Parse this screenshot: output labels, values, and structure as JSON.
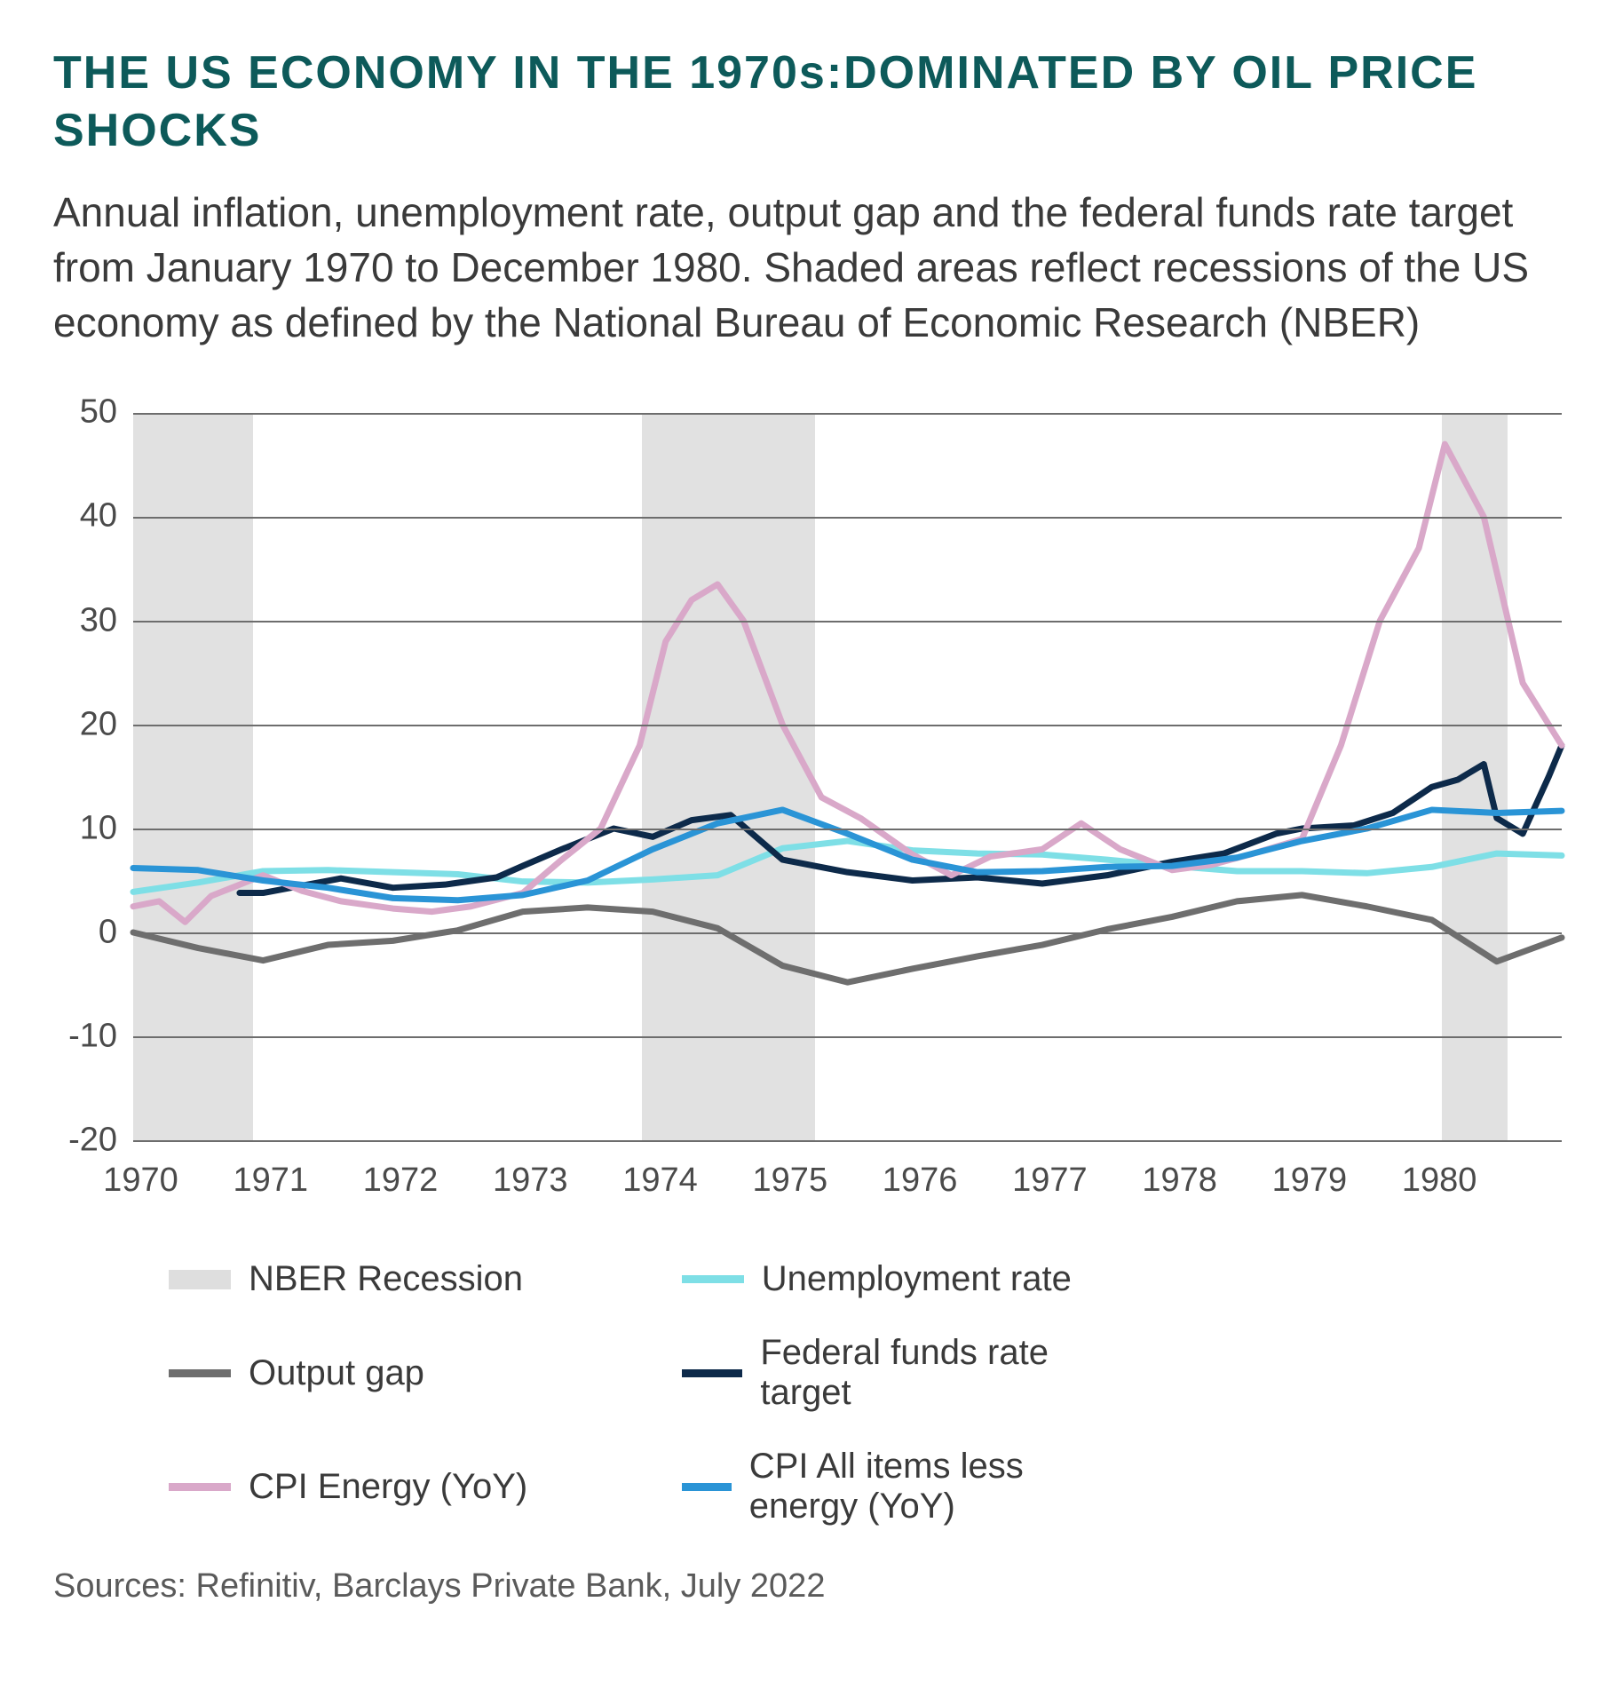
{
  "title": "THE US ECONOMY IN THE 1970s:DOMINATED BY OIL PRICE SHOCKS",
  "subtitle": "Annual inflation, unemployment rate, output gap and the federal funds rate target from January 1970 to December 1980. Shaded areas reflect recessions of the US economy as defined by the National Bureau of Economic Research (NBER)",
  "sources": "Sources: Refinitiv, Barclays Private Bank, July 2022",
  "chart": {
    "type": "line",
    "background_color": "#ffffff",
    "grid_color": "#6d6d6d",
    "ylim": [
      -20,
      50
    ],
    "yticks": [
      50,
      40,
      30,
      20,
      10,
      0,
      -10,
      -20
    ],
    "xlim": [
      1970,
      1981
    ],
    "xticks": [
      1970,
      1971,
      1972,
      1973,
      1974,
      1975,
      1976,
      1977,
      1978,
      1979,
      1980
    ],
    "tick_fontsize": 38,
    "recessions": {
      "color": "#dedede",
      "bands": [
        {
          "start": 1970.0,
          "end": 1970.92
        },
        {
          "start": 1973.92,
          "end": 1975.25
        },
        {
          "start": 1980.08,
          "end": 1980.58
        }
      ]
    },
    "line_width": 7,
    "series": [
      {
        "key": "unemployment",
        "label": "Unemployment rate",
        "color": "#7edfe6",
        "x": [
          1970,
          1970.5,
          1971,
          1971.5,
          1972,
          1972.5,
          1973,
          1973.5,
          1974,
          1974.5,
          1975,
          1975.5,
          1976,
          1976.5,
          1977,
          1977.5,
          1978,
          1978.5,
          1979,
          1979.5,
          1980,
          1980.5,
          1981
        ],
        "y": [
          3.9,
          4.8,
          5.9,
          6.0,
          5.8,
          5.6,
          4.9,
          4.8,
          5.1,
          5.5,
          8.1,
          8.8,
          7.9,
          7.6,
          7.5,
          7.0,
          6.4,
          5.9,
          5.9,
          5.7,
          6.3,
          7.6,
          7.4
        ]
      },
      {
        "key": "output_gap",
        "label": "Output gap",
        "color": "#6e6e6e",
        "x": [
          1970,
          1970.5,
          1971,
          1971.5,
          1972,
          1972.5,
          1973,
          1973.5,
          1974,
          1974.5,
          1975,
          1975.5,
          1976,
          1976.5,
          1977,
          1977.5,
          1978,
          1978.5,
          1979,
          1979.5,
          1980,
          1980.5,
          1981
        ],
        "y": [
          0,
          -1.5,
          -2.7,
          -1.2,
          -0.8,
          0.2,
          2.0,
          2.4,
          2.0,
          0.4,
          -3.2,
          -4.8,
          -3.5,
          -2.3,
          -1.2,
          0.3,
          1.5,
          3.0,
          3.6,
          2.5,
          1.2,
          -2.8,
          -0.5
        ]
      },
      {
        "key": "fed_funds",
        "label": "Federal funds rate target",
        "color": "#0d2a4a",
        "x": [
          1970.82,
          1971,
          1971.3,
          1971.6,
          1972,
          1972.4,
          1972.8,
          1973,
          1973.3,
          1973.7,
          1974,
          1974.3,
          1974.6,
          1975,
          1975.5,
          1976,
          1976.5,
          1977,
          1977.5,
          1978,
          1978.4,
          1978.8,
          1979,
          1979.4,
          1979.7,
          1980,
          1980.2,
          1980.4,
          1980.5,
          1980.7,
          1980.9,
          1981
        ],
        "y": [
          3.8,
          3.8,
          4.5,
          5.2,
          4.3,
          4.6,
          5.3,
          6.4,
          8.0,
          10.0,
          9.2,
          10.8,
          11.3,
          7.0,
          5.8,
          5.0,
          5.3,
          4.7,
          5.5,
          6.8,
          7.6,
          9.5,
          10.0,
          10.3,
          11.5,
          14,
          14.7,
          16.2,
          11.0,
          9.5,
          15.0,
          18.0
        ]
      },
      {
        "key": "cpi_energy",
        "label": "CPI Energy (YoY)",
        "color": "#d9a8c9",
        "x": [
          1970,
          1970.2,
          1970.4,
          1970.6,
          1970.8,
          1971,
          1971.3,
          1971.6,
          1972,
          1972.3,
          1972.6,
          1973,
          1973.3,
          1973.6,
          1973.9,
          1974.1,
          1974.3,
          1974.5,
          1974.7,
          1975,
          1975.3,
          1975.6,
          1976,
          1976.3,
          1976.6,
          1977,
          1977.3,
          1977.6,
          1978,
          1978.3,
          1978.6,
          1979,
          1979.3,
          1979.6,
          1979.9,
          1980.1,
          1980.4,
          1980.7,
          1981
        ],
        "y": [
          2.5,
          3.0,
          1.0,
          3.5,
          4.5,
          5.5,
          4.0,
          3.0,
          2.3,
          2.0,
          2.5,
          3.8,
          7.0,
          10.0,
          18.0,
          28.0,
          32.0,
          33.5,
          30.0,
          20.0,
          13.0,
          11.0,
          7.5,
          5.5,
          7.3,
          8.0,
          10.5,
          8.0,
          6.0,
          6.5,
          7.5,
          9.0,
          18.0,
          30.0,
          37.0,
          47.0,
          40.0,
          24.0,
          18.0
        ]
      },
      {
        "key": "cpi_core",
        "label": "CPI All items less energy (YoY)",
        "color": "#2a94d6",
        "x": [
          1970,
          1970.5,
          1971,
          1971.5,
          1972,
          1972.5,
          1973,
          1973.5,
          1974,
          1974.5,
          1975,
          1975.5,
          1976,
          1976.5,
          1977,
          1977.5,
          1978,
          1978.5,
          1979,
          1979.5,
          1980,
          1980.5,
          1981
        ],
        "y": [
          6.2,
          6.0,
          5.0,
          4.3,
          3.3,
          3.1,
          3.6,
          5.0,
          8.0,
          10.5,
          11.8,
          9.5,
          7.0,
          5.8,
          5.9,
          6.3,
          6.4,
          7.2,
          8.8,
          10.0,
          11.8,
          11.5,
          11.7
        ]
      }
    ],
    "legend": [
      {
        "key": "recession",
        "label": "NBER Recession",
        "color": "#dedede",
        "shape": "rect"
      },
      {
        "key": "unemployment",
        "label": "Unemployment rate",
        "color": "#7edfe6",
        "shape": "line"
      },
      {
        "key": "output_gap",
        "label": "Output gap",
        "color": "#6e6e6e",
        "shape": "line"
      },
      {
        "key": "fed_funds",
        "label": "Federal funds rate target",
        "color": "#0d2a4a",
        "shape": "line"
      },
      {
        "key": "cpi_energy",
        "label": "CPI Energy (YoY)",
        "color": "#d9a8c9",
        "shape": "line"
      },
      {
        "key": "cpi_core",
        "label": "CPI All items less energy (YoY)",
        "color": "#2a94d6",
        "shape": "line"
      }
    ]
  }
}
